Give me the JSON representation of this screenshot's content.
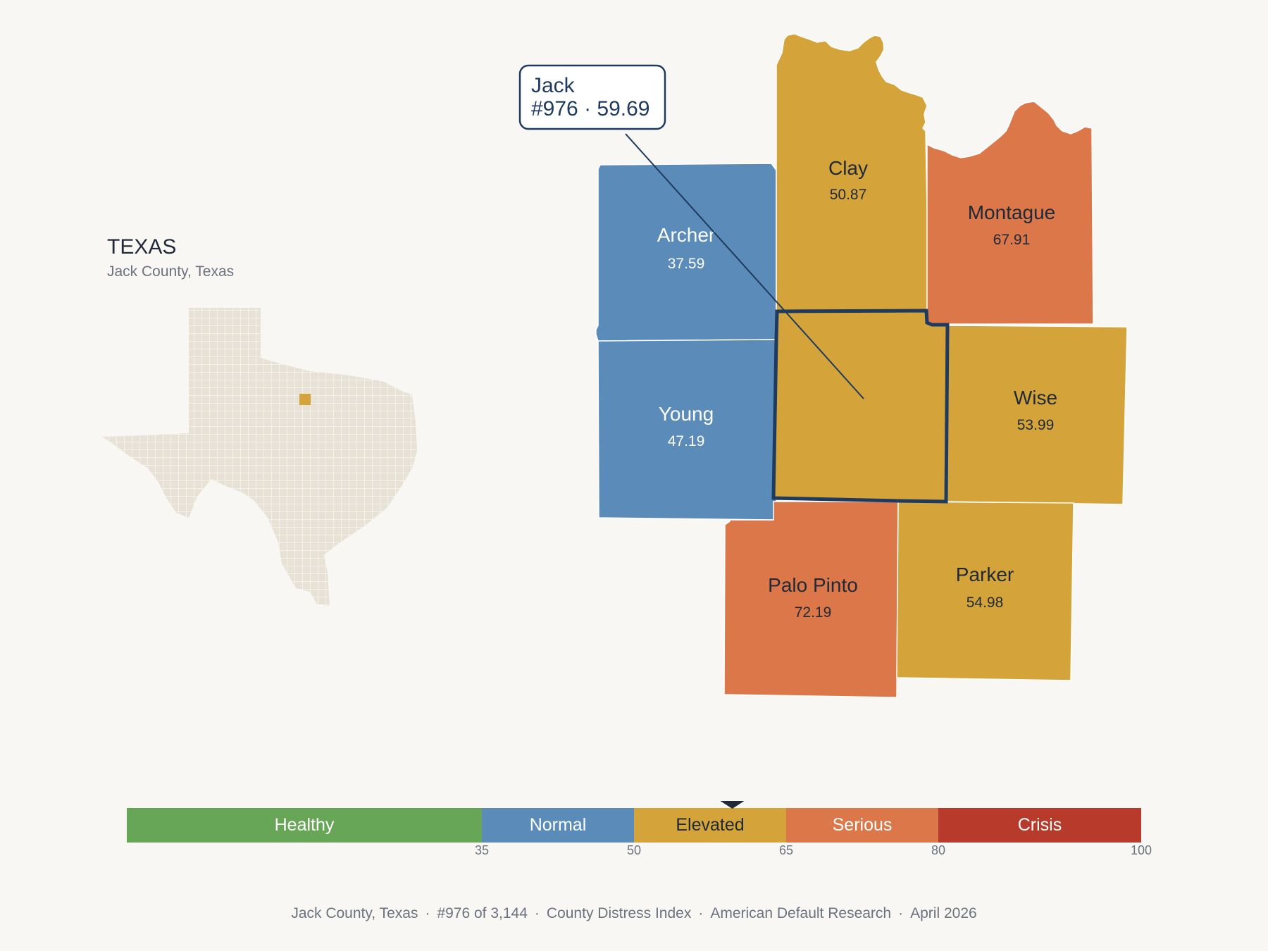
{
  "state": {
    "title": "TEXAS",
    "subtitle": "Jack County, Texas"
  },
  "tooltip": {
    "line1": "Jack",
    "line2": "#976 · 59.69"
  },
  "counties": [
    {
      "name": "Archer",
      "value": "37.59"
    },
    {
      "name": "Clay",
      "value": "50.87"
    },
    {
      "name": "Montague",
      "value": "67.91"
    },
    {
      "name": "Young",
      "value": "47.19"
    },
    {
      "name": "Wise",
      "value": "53.99"
    },
    {
      "name": "Palo Pinto",
      "value": "72.19"
    },
    {
      "name": "Parker",
      "value": "54.98"
    }
  ],
  "legend": {
    "segments": [
      {
        "label": "Healthy",
        "color": "#67a657"
      },
      {
        "label": "Normal",
        "color": "#5b8bb9"
      },
      {
        "label": "Elevated",
        "color": "#d4a43a"
      },
      {
        "label": "Serious",
        "color": "#dc774a"
      },
      {
        "label": "Crisis",
        "color": "#b83a2b"
      }
    ],
    "ticks": [
      "35",
      "50",
      "65",
      "80",
      "100"
    ],
    "marker_value": 59.69
  },
  "colors": {
    "normal": "#5b8bb9",
    "elevated": "#d4a43a",
    "serious": "#dc774a",
    "highlight_outline": "#1f3a5f",
    "texas_fill": "#e8e2d6"
  },
  "footer": {
    "items": [
      "Jack County, Texas",
      "#976 of 3,144",
      "County Distress Index",
      "American Default Research",
      "April 2026"
    ]
  }
}
